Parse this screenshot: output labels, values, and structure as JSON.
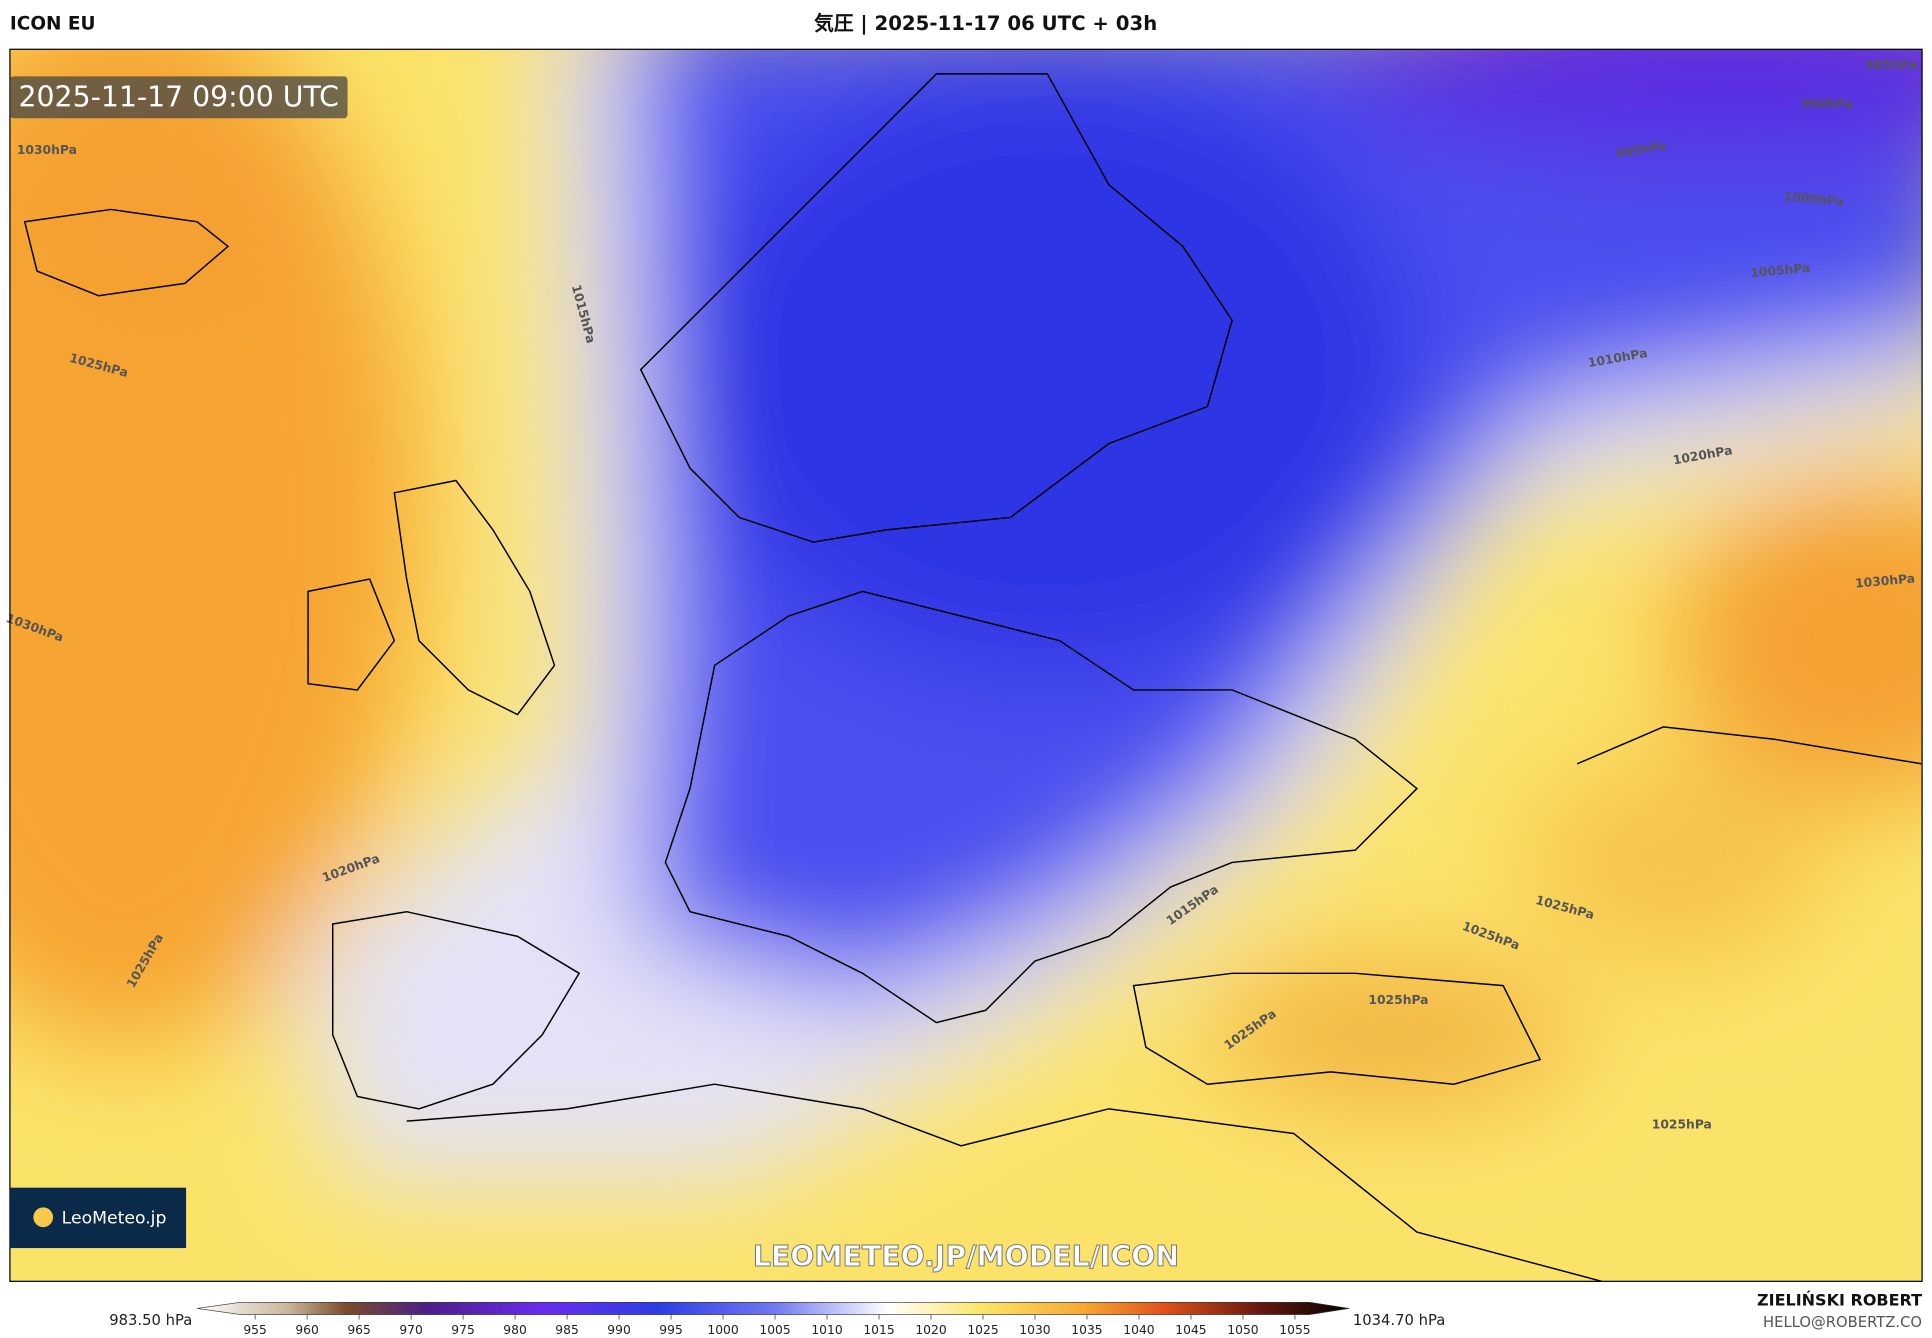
{
  "header": {
    "model": "ICON EU",
    "title": "気圧 | 2025-11-17 06 UTC + 03h"
  },
  "map": {
    "timestamp": "2025-11-17 09:00 UTC",
    "watermark": "LEOMETEO.JP/MODEL/ICON",
    "logo": "LeoMeteo.jp",
    "contour_labels": [
      "1030hPa",
      "1025hPa",
      "1030hPa",
      "1015hPa",
      "1020hPa",
      "1025hPa",
      "985hPa",
      "990hPa",
      "995hPa",
      "1000hPa",
      "1005hPa",
      "1010hPa",
      "1020hPa",
      "1030hPa",
      "1015hPa",
      "1025hPa",
      "1025hPa",
      "1025hPa",
      "1025hPa",
      "1025hPa"
    ]
  },
  "colorbar": {
    "min_label": "983.50 hPa",
    "max_label": "1034.70 hPa",
    "ticks": [
      955,
      960,
      965,
      970,
      975,
      980,
      985,
      990,
      995,
      1000,
      1005,
      1010,
      1015,
      1020,
      1025,
      1030,
      1035,
      1040,
      1045,
      1050,
      1055
    ]
  },
  "footer": {
    "author": "ZIELIŃSKI ROBERT",
    "contact": "HELLO@ROBERTZ.CO"
  }
}
